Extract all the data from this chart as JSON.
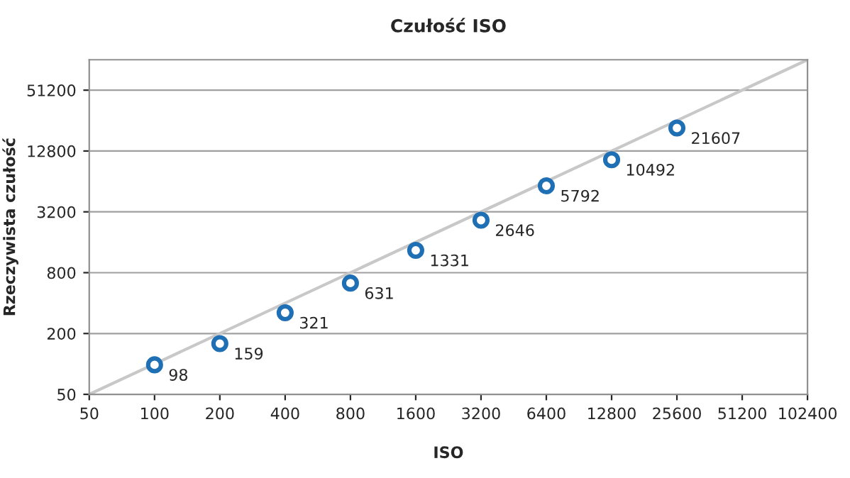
{
  "chart_data": {
    "type": "scatter",
    "title": "Czułość ISO",
    "xlabel": "ISO",
    "ylabel": "Rzeczywista czułość",
    "log": "xy",
    "grid": "y",
    "legend": false,
    "marker": "circle",
    "xlim": [
      50,
      102400
    ],
    "xticks": [
      50,
      100,
      200,
      400,
      800,
      1600,
      3200,
      6400,
      12800,
      25600,
      51200,
      102400
    ],
    "ylim": [
      50,
      102400
    ],
    "yticks": [
      50,
      200,
      800,
      3200,
      12800,
      51200
    ],
    "series": [
      {
        "type": "line",
        "color": "#c8c8c8",
        "x": [
          50,
          102400
        ],
        "values": [
          50,
          102400
        ],
        "marker": "none"
      },
      {
        "color": "#1f6fb4",
        "x": [
          100,
          200,
          400,
          800,
          1600,
          3200,
          6400,
          12800,
          25600
        ],
        "values": [
          98,
          159,
          321,
          631,
          1331,
          2646,
          5792,
          10492,
          21607
        ],
        "value_labels": [
          "98",
          "159",
          "321",
          "631",
          "1331",
          "2646",
          "5792",
          "10492",
          "21607"
        ]
      }
    ]
  }
}
